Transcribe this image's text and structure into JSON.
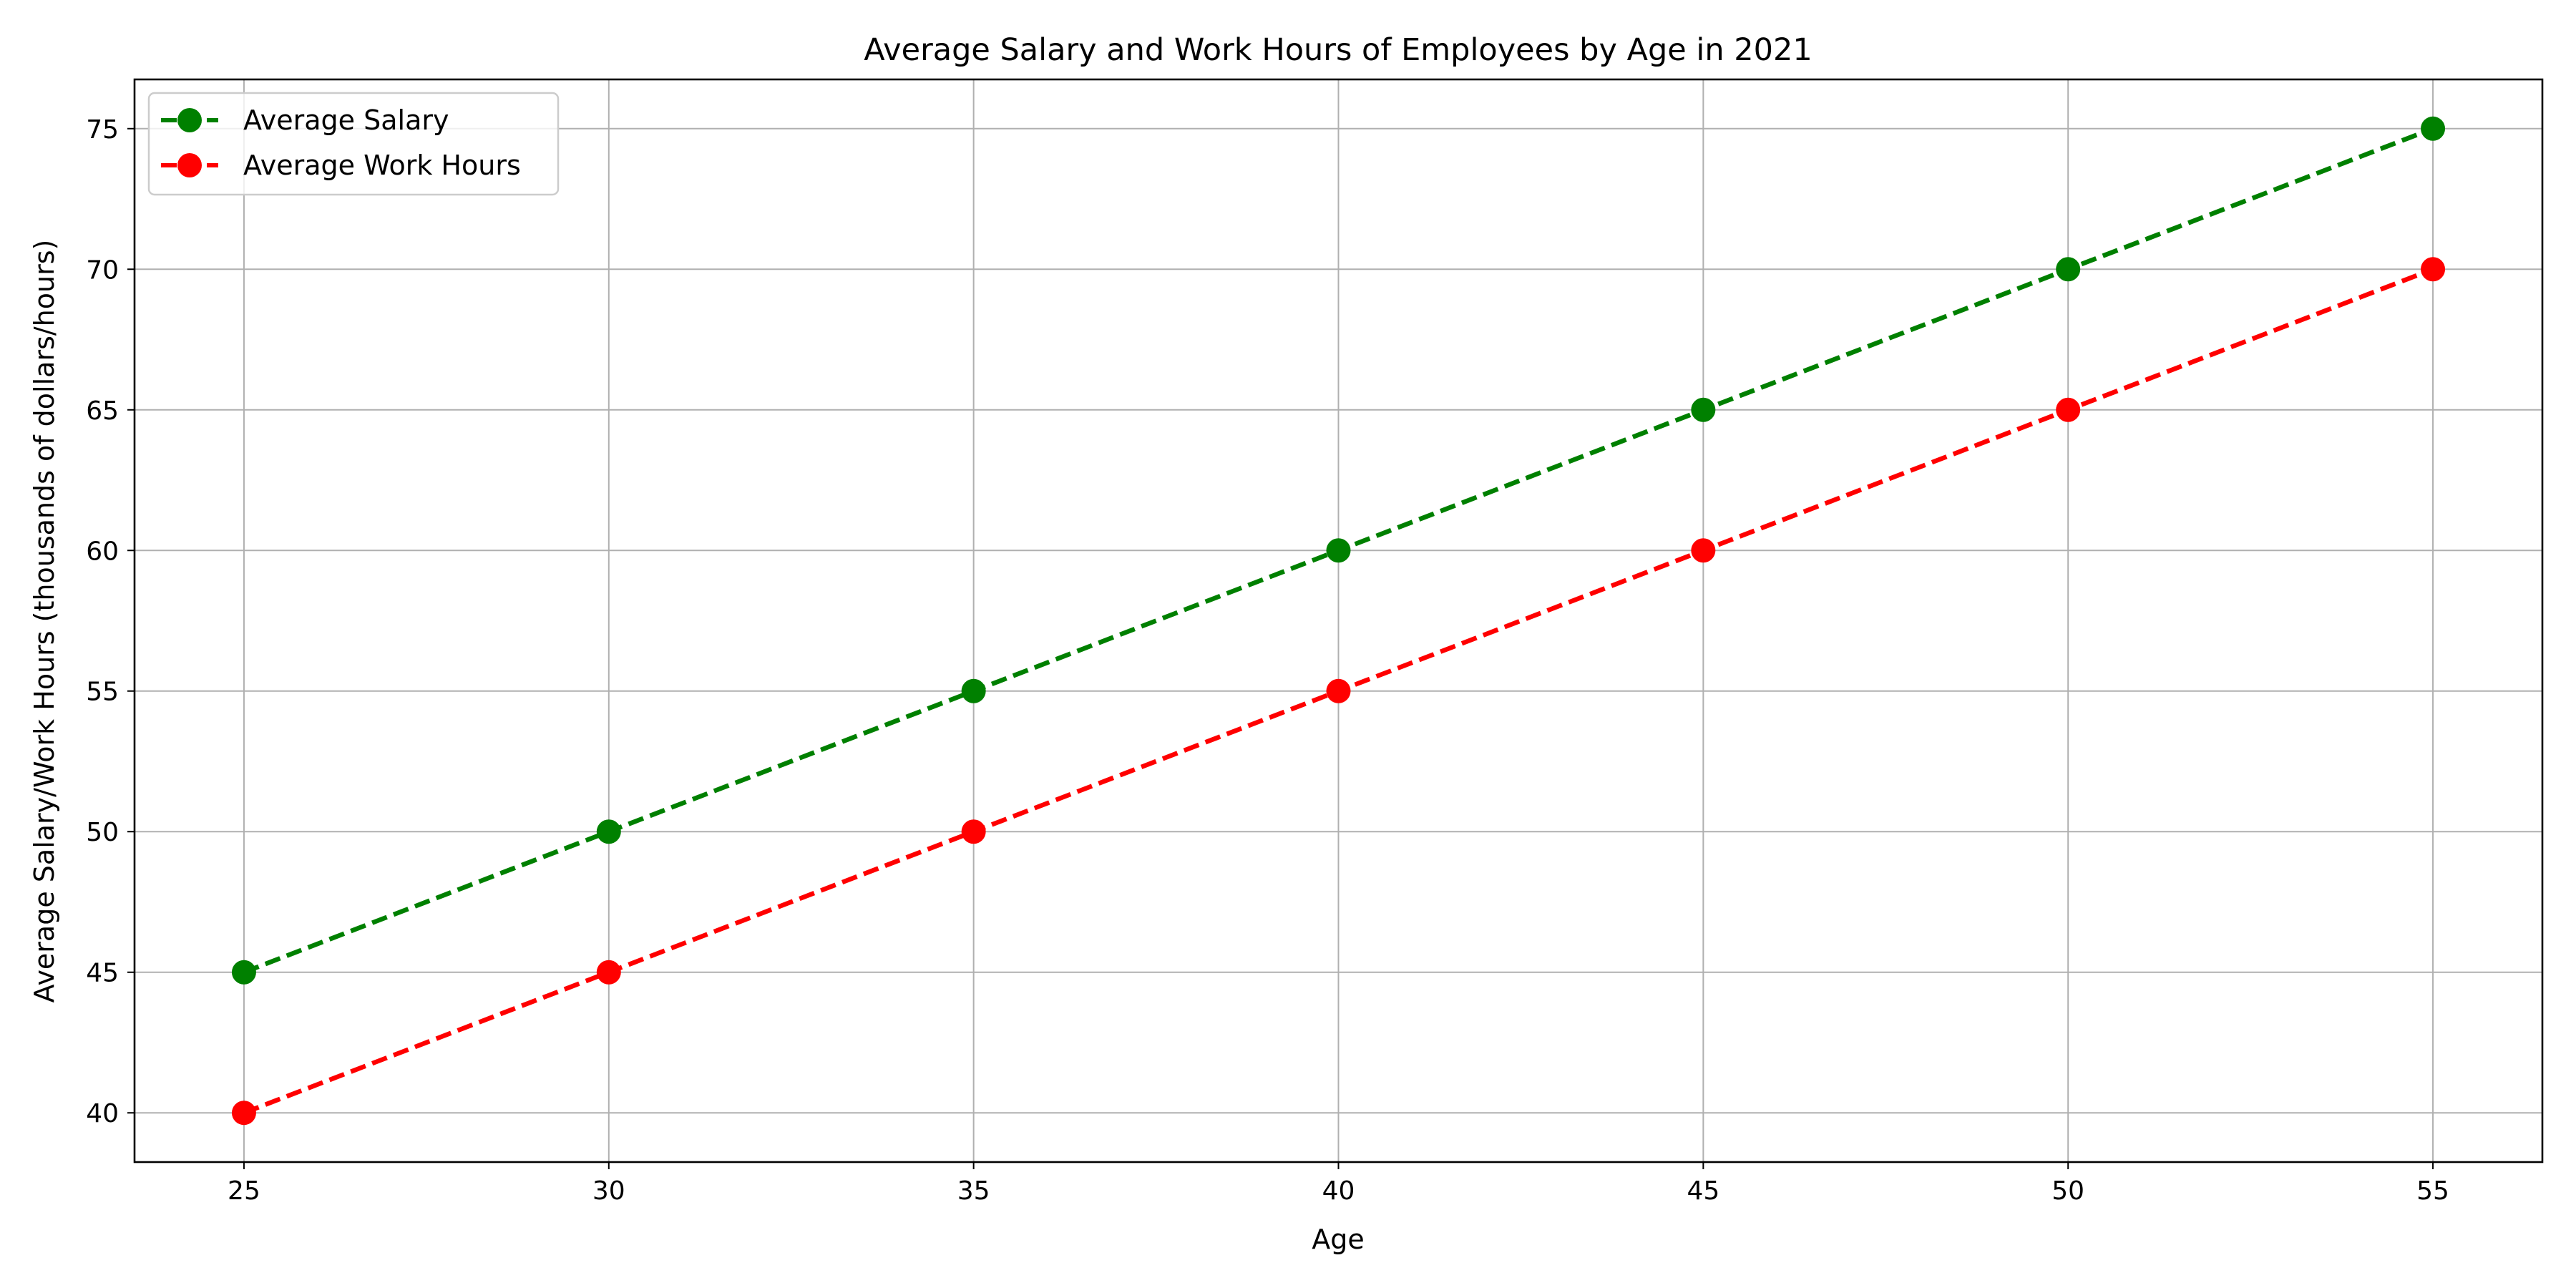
{
  "chart_data": {
    "type": "line",
    "title": "Average Salary and Work Hours of Employees by Age in 2021",
    "xlabel": "Age",
    "ylabel": "Average Salary/Work Hours (thousands of dollars/hours)",
    "x": [
      25,
      30,
      35,
      40,
      45,
      50,
      55
    ],
    "xlim": [
      23.5,
      56.5
    ],
    "ylim": [
      38.25,
      76.75
    ],
    "x_ticks": [
      25,
      30,
      35,
      40,
      45,
      50,
      55
    ],
    "y_ticks": [
      40,
      45,
      50,
      55,
      60,
      65,
      70,
      75
    ],
    "grid": true,
    "legend_position": "top-left",
    "series": [
      {
        "name": "Average Salary",
        "values": [
          45,
          50,
          55,
          60,
          65,
          70,
          75
        ],
        "color": "#008000",
        "line_style": "dashed",
        "marker": "circle"
      },
      {
        "name": "Average Work Hours",
        "values": [
          40,
          45,
          50,
          55,
          60,
          65,
          70
        ],
        "color": "#ff0000",
        "line_style": "dashed",
        "marker": "circle"
      }
    ]
  }
}
